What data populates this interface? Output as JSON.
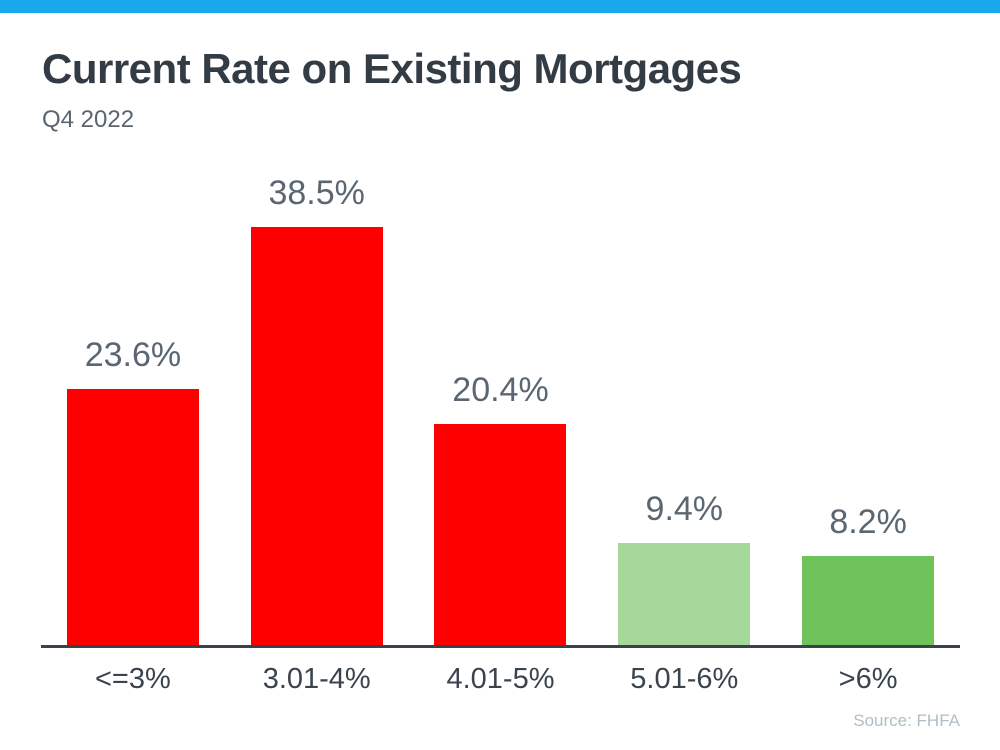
{
  "header": {
    "title": "Current Rate on Existing Mortgages",
    "subtitle": "Q4 2022"
  },
  "source_label": "Source: FHFA",
  "colors": {
    "top_strip": "#17A9EC",
    "title_text": "#333C44",
    "subtitle_text": "#5A656F",
    "value_label_text": "#5A6773",
    "x_label_text": "#3A444E",
    "axis_line": "#39424B",
    "source_text": "#AFBEC6",
    "bar_red": "#FF0000",
    "bar_light_green": "#A6D89B",
    "bar_green": "#70C25B"
  },
  "chart_data": {
    "type": "bar",
    "title": "Current Rate on Existing Mortgages",
    "subtitle": "Q4 2022",
    "categories": [
      "<=3%",
      "3.01-4%",
      "4.01-5%",
      "5.01-6%",
      ">6%"
    ],
    "values": [
      23.6,
      38.5,
      20.4,
      9.4,
      8.2
    ],
    "value_labels": [
      "23.6%",
      "38.5%",
      "20.4%",
      "9.4%",
      "8.2%"
    ],
    "bar_colors": [
      "#FF0000",
      "#FF0000",
      "#FF0000",
      "#A6D89B",
      "#70C25B"
    ],
    "xlabel": "",
    "ylabel": "",
    "ylim": [
      0,
      40
    ],
    "grid": false,
    "legend": "none",
    "source": "Source: FHFA"
  }
}
